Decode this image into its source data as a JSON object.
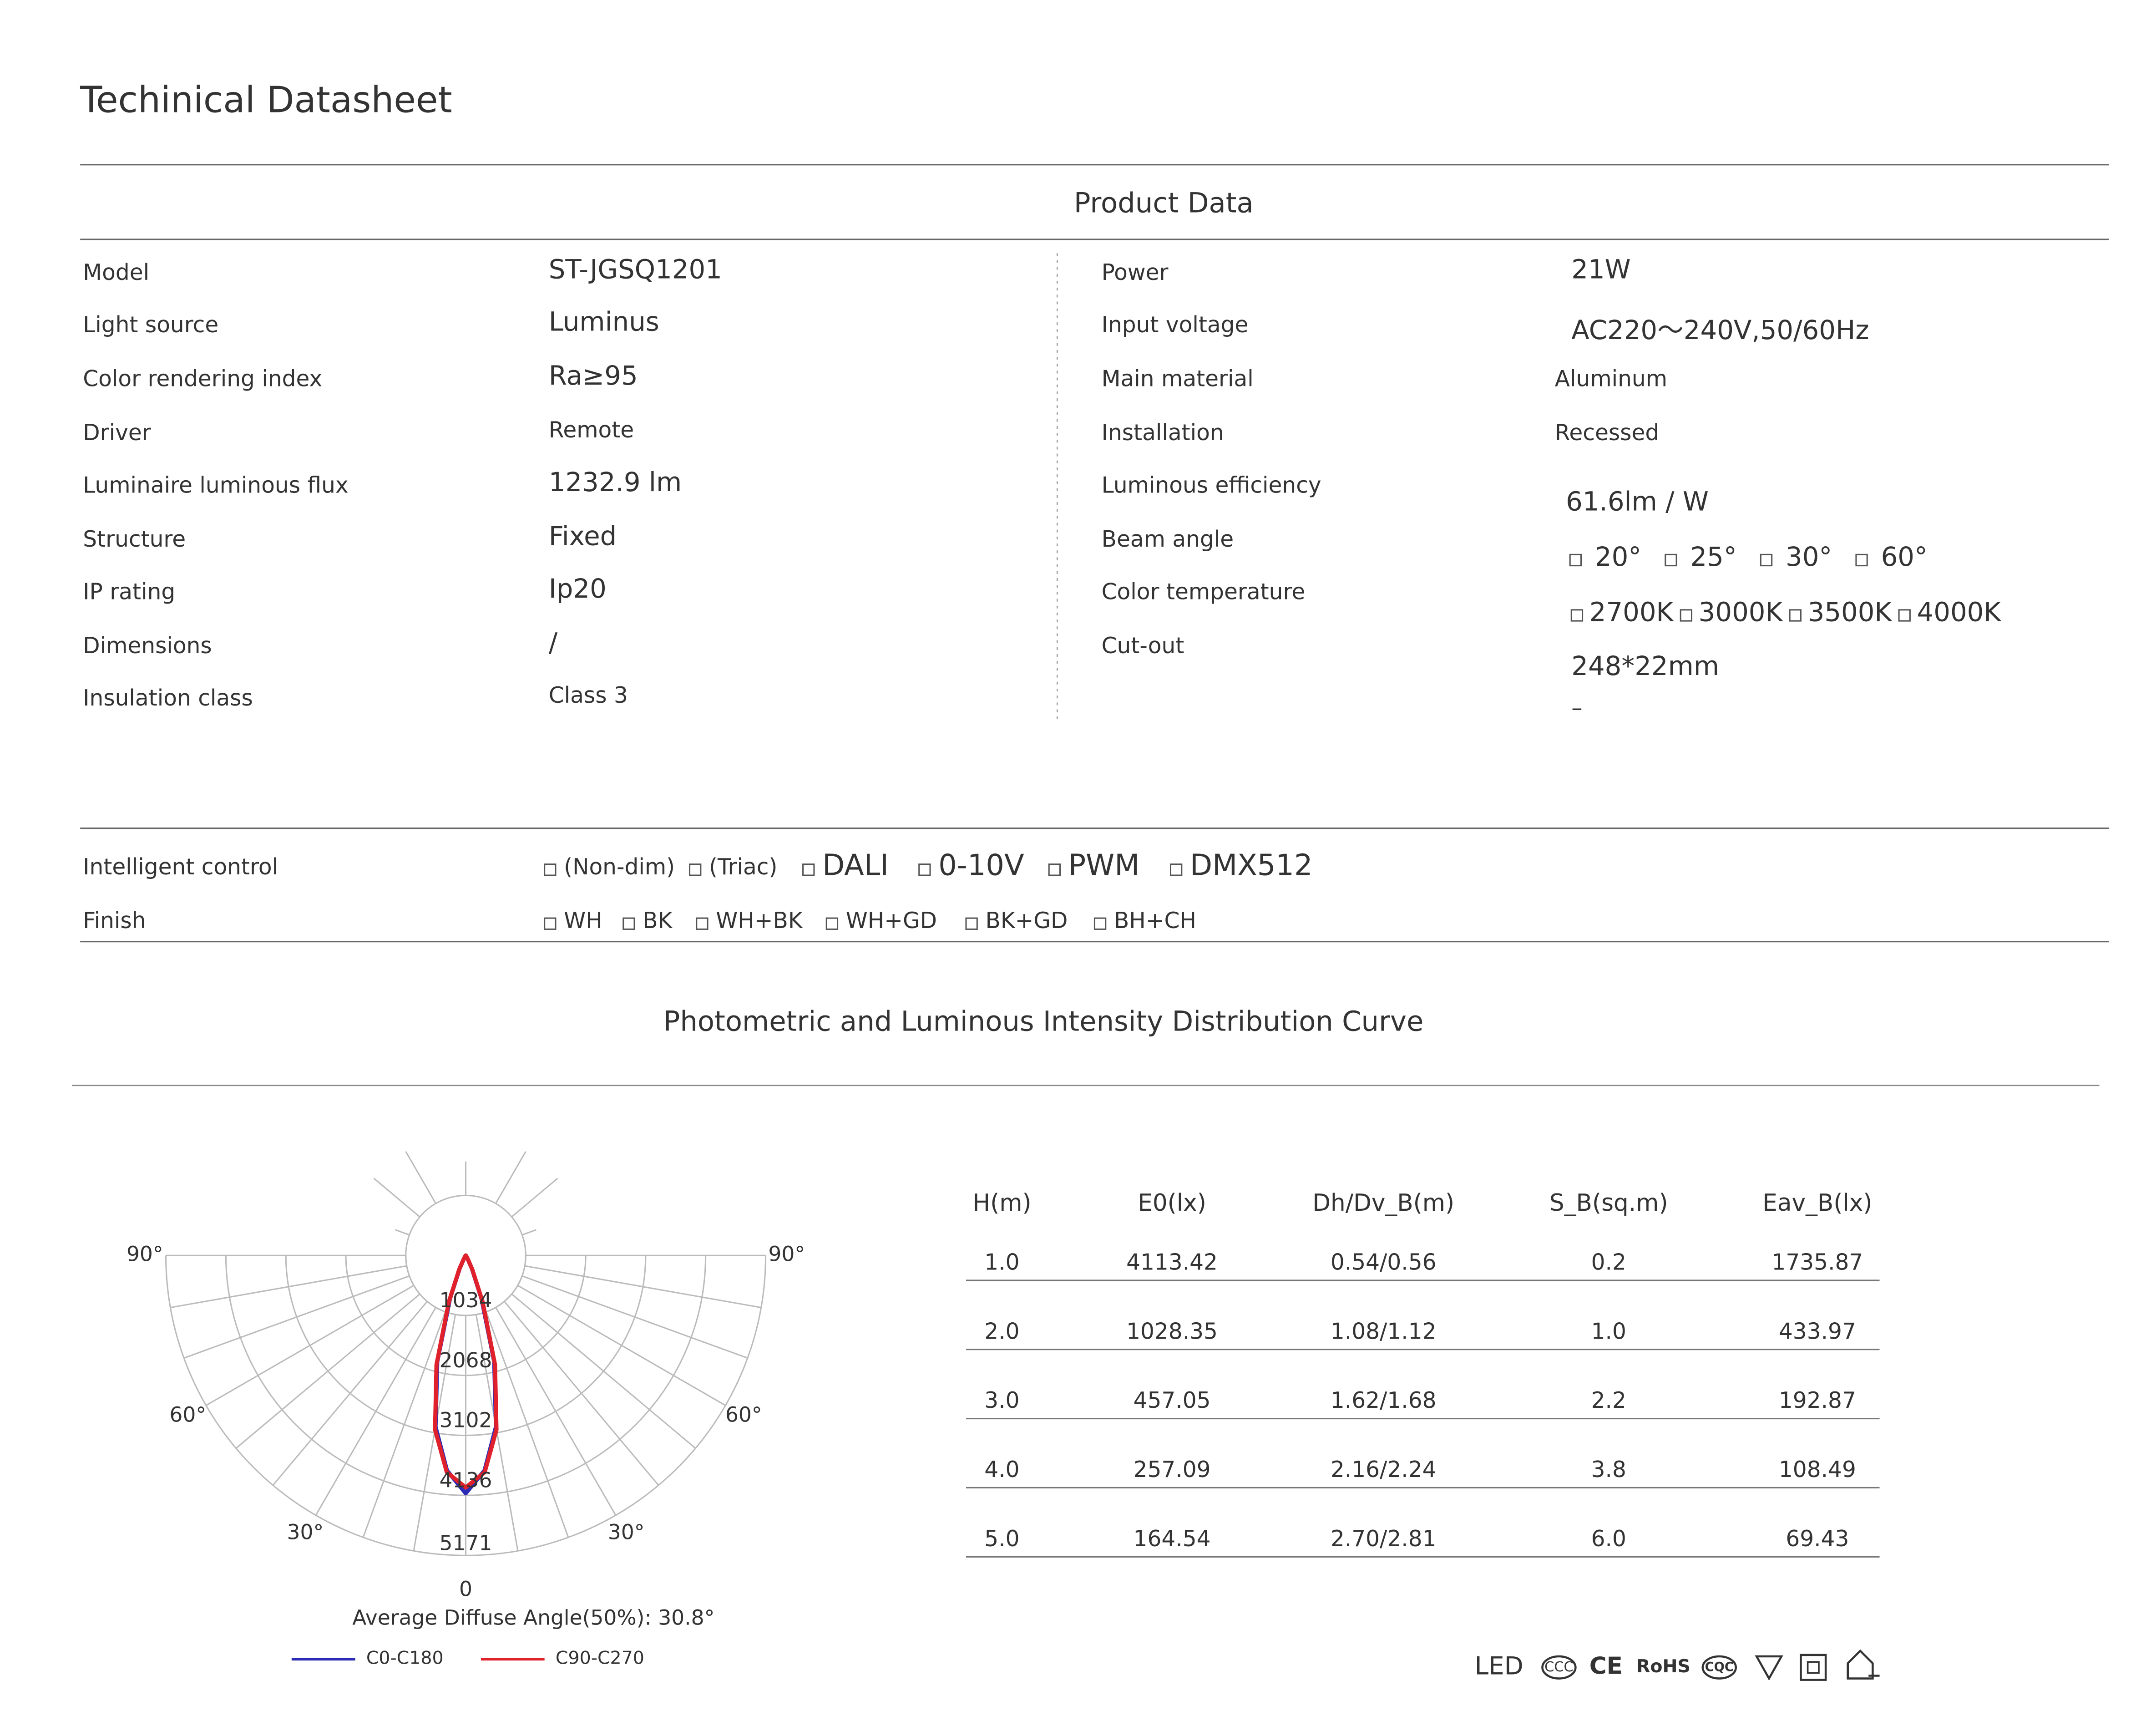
{
  "header": {
    "title": "Techinical Datasheet"
  },
  "product_data": {
    "title": "Product Data",
    "left": [
      {
        "label": "Model",
        "value": "ST-JGSQ1201"
      },
      {
        "label": "Light source",
        "value": "Luminus"
      },
      {
        "label": "Color rendering index",
        "value": "Ra≥95"
      },
      {
        "label": "Driver",
        "value": "Remote"
      },
      {
        "label": "Luminaire luminous flux",
        "value": "1232.9 lm"
      },
      {
        "label": "Structure",
        "value": "Fixed"
      },
      {
        "label": "IP  rating",
        "value": "Ip20"
      },
      {
        "label": "Dimensions",
        "value": "/"
      },
      {
        "label": "Insulation class",
        "value": "Class 3"
      }
    ],
    "right": [
      {
        "label": "Power",
        "value": "21W"
      },
      {
        "label": "Input voltage",
        "value": "AC220～240V,50/60Hz"
      },
      {
        "label": "Main material",
        "value": "Aluminum"
      },
      {
        "label": "Installation",
        "value": "Recessed"
      },
      {
        "label": "Luminous efficiency",
        "value": "61.6lm / W"
      },
      {
        "label": "Beam angle",
        "options": [
          "20°",
          "25°",
          "30°",
          "60°"
        ]
      },
      {
        "label": "Color temperature",
        "options": [
          "2700K",
          "3000K",
          "3500K",
          "4000K"
        ]
      },
      {
        "label": "Cut-out",
        "value": "248*22mm"
      }
    ],
    "note": "–"
  },
  "options": [
    {
      "label": "Intelligent control",
      "items": [
        "(Non-dim)",
        "(Triac)",
        "DALI",
        "0-10V",
        "PWM",
        "DMX512"
      ]
    },
    {
      "label": "Finish",
      "items": [
        "WH",
        "BK",
        "WH+BK",
        "WH+GD",
        "BK+GD",
        "BH+CH"
      ]
    }
  ],
  "photometric": {
    "title": "Photometric and Luminous Intensity Distribution Curve",
    "polar_chart": {
      "type": "polar",
      "rlim": [
        0,
        5171
      ],
      "rticks": [
        1034,
        2068,
        3102,
        4136,
        5171
      ],
      "angle_ticks": [
        {
          "value": -90,
          "label": "90°"
        },
        {
          "value": 90,
          "label": "90°"
        },
        {
          "value": -60,
          "label": "60°"
        },
        {
          "value": 60,
          "label": "60°"
        },
        {
          "value": -30,
          "label": "30°"
        },
        {
          "value": 30,
          "label": "30°"
        },
        0
      ],
      "angles": [
        0,
        5,
        10,
        15,
        20,
        25,
        30,
        40,
        60,
        90
      ],
      "series": [
        {
          "name": "C0-C180",
          "color": "#2b2bb8",
          "values": [
            4100,
            3720,
            3000,
            1900,
            800,
            250,
            60,
            10,
            0,
            0
          ]
        },
        {
          "name": "C90-C270",
          "color": "#e0202a",
          "values": [
            4000,
            3750,
            3050,
            1950,
            850,
            270,
            70,
            10,
            0,
            0
          ]
        }
      ],
      "caption": "Average Diffuse Angle(50%): 30.8°"
    },
    "table": {
      "columns": [
        "H(m)",
        "E0(lx)",
        "Dh/Dv_B(m)",
        "S_B(sq.m)",
        "Eav_B(lx)"
      ],
      "rows": [
        [
          "1.0",
          "4113.42",
          "0.54/0.56",
          "0.2",
          "1735.87"
        ],
        [
          "2.0",
          "1028.35",
          "1.08/1.12",
          "1.0",
          "433.97"
        ],
        [
          "3.0",
          "457.05",
          "1.62/1.68",
          "2.2",
          "192.87"
        ],
        [
          "4.0",
          "257.09",
          "2.16/2.24",
          "3.8",
          "108.49"
        ],
        [
          "5.0",
          "164.54",
          "2.70/2.81",
          "6.0",
          "69.43"
        ]
      ]
    }
  },
  "certifications": [
    "LED",
    "CCC",
    "CE",
    "RoHS",
    "CQC"
  ]
}
